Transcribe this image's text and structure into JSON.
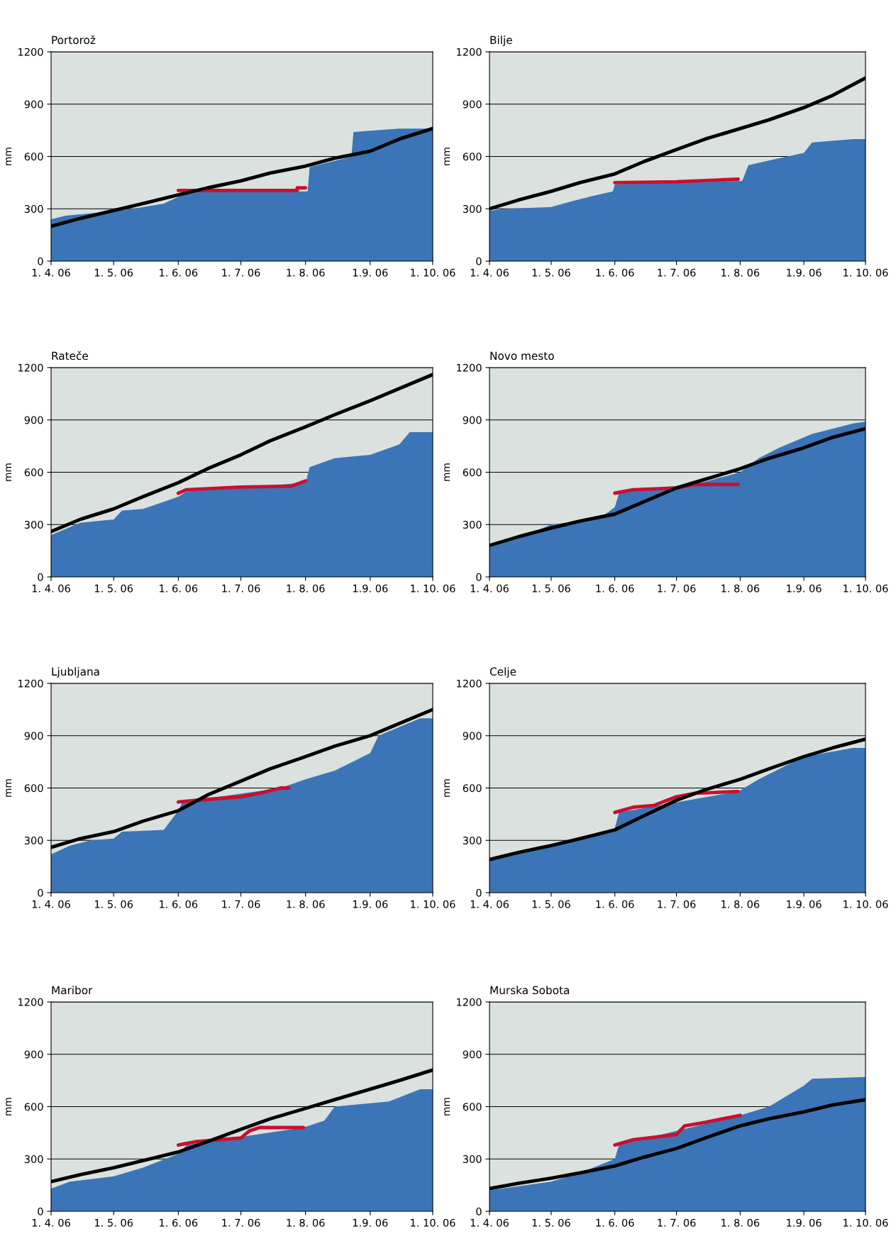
{
  "chart_data": [
    {
      "type": "line",
      "title": "Portorož",
      "ylabel": "mm",
      "ylim": [
        0,
        1200
      ],
      "yticks": [
        0,
        300,
        600,
        900,
        1200
      ],
      "xlim": [
        "2006-04-01",
        "2006-10-01"
      ],
      "xticks": [
        {
          "value": "2006-04-01",
          "label": "1. 4. 06"
        },
        {
          "value": "2006-05-01",
          "label": "1. 5. 06"
        },
        {
          "value": "2006-06-01",
          "label": "1. 6. 06"
        },
        {
          "value": "2006-07-01",
          "label": "1. 7. 06"
        },
        {
          "value": "2006-08-01",
          "label": "1. 8. 06"
        },
        {
          "value": "2006-09-01",
          "label": "1.9. 06"
        },
        {
          "value": "2006-10-01",
          "label": "1. 10. 06"
        }
      ],
      "grid": "y",
      "series": [
        {
          "type": "area",
          "color": "#3b75b8",
          "x": [
            "2006-04-01",
            "2006-04-08",
            "2006-04-25",
            "2006-05-10",
            "2006-05-25",
            "2006-06-05",
            "2006-06-10",
            "2006-08-02",
            "2006-08-03",
            "2006-08-10",
            "2006-08-20",
            "2006-08-23",
            "2006-08-24",
            "2006-09-15",
            "2006-10-01"
          ],
          "values": [
            240,
            260,
            280,
            300,
            330,
            390,
            400,
            400,
            540,
            560,
            590,
            600,
            740,
            760,
            760
          ]
        },
        {
          "color": "#c8102e",
          "x": [
            "2006-06-01",
            "2006-07-28",
            "2006-07-28",
            "2006-08-01"
          ],
          "values": [
            405,
            405,
            420,
            420
          ]
        },
        {
          "color": "#000000",
          "x": [
            "2006-04-01",
            "2006-04-15",
            "2006-05-01",
            "2006-05-15",
            "2006-06-01",
            "2006-06-15",
            "2006-07-01",
            "2006-07-15",
            "2006-08-01",
            "2006-08-15",
            "2006-09-01",
            "2006-09-15",
            "2006-10-01"
          ],
          "values": [
            200,
            245,
            290,
            330,
            380,
            420,
            460,
            505,
            545,
            590,
            630,
            700,
            760
          ]
        }
      ]
    },
    {
      "type": "line",
      "title": "Bilje",
      "ylabel": "mm",
      "ylim": [
        0,
        1200
      ],
      "yticks": [
        0,
        300,
        600,
        900,
        1200
      ],
      "xlim": [
        "2006-04-01",
        "2006-10-01"
      ],
      "xticks": [
        {
          "value": "2006-04-01",
          "label": "1. 4. 06"
        },
        {
          "value": "2006-05-01",
          "label": "1. 5. 06"
        },
        {
          "value": "2006-06-01",
          "label": "1. 6. 06"
        },
        {
          "value": "2006-07-01",
          "label": "1. 7. 06"
        },
        {
          "value": "2006-08-01",
          "label": "1. 8. 06"
        },
        {
          "value": "2006-09-01",
          "label": "1.9. 06"
        },
        {
          "value": "2006-10-01",
          "label": "1. 10. 06"
        }
      ],
      "grid": "y",
      "series": [
        {
          "type": "area",
          "color": "#3b75b8",
          "x": [
            "2006-04-01",
            "2006-04-10",
            "2006-05-01",
            "2006-05-10",
            "2006-05-20",
            "2006-05-31",
            "2006-06-01",
            "2006-08-02",
            "2006-08-05",
            "2006-08-20",
            "2006-09-01",
            "2006-09-05",
            "2006-09-25",
            "2006-10-01"
          ],
          "values": [
            290,
            300,
            310,
            340,
            370,
            400,
            440,
            460,
            550,
            590,
            620,
            680,
            700,
            700
          ]
        },
        {
          "color": "#c8102e",
          "x": [
            "2006-06-01",
            "2006-07-01",
            "2006-07-31"
          ],
          "values": [
            450,
            455,
            470
          ]
        },
        {
          "color": "#000000",
          "x": [
            "2006-04-01",
            "2006-04-15",
            "2006-05-01",
            "2006-05-15",
            "2006-06-01",
            "2006-06-15",
            "2006-07-01",
            "2006-07-15",
            "2006-08-01",
            "2006-08-15",
            "2006-09-01",
            "2006-09-15",
            "2006-10-01"
          ],
          "values": [
            300,
            350,
            400,
            450,
            500,
            570,
            640,
            700,
            760,
            810,
            880,
            950,
            1050
          ]
        }
      ]
    },
    {
      "type": "line",
      "title": "Rateče",
      "ylabel": "mm",
      "ylim": [
        0,
        1200
      ],
      "yticks": [
        0,
        300,
        600,
        900,
        1200
      ],
      "xlim": [
        "2006-04-01",
        "2006-10-01"
      ],
      "xticks": [
        {
          "value": "2006-04-01",
          "label": "1. 4. 06"
        },
        {
          "value": "2006-05-01",
          "label": "1. 5. 06"
        },
        {
          "value": "2006-06-01",
          "label": "1. 6. 06"
        },
        {
          "value": "2006-07-01",
          "label": "1. 7. 06"
        },
        {
          "value": "2006-08-01",
          "label": "1. 8. 06"
        },
        {
          "value": "2006-09-01",
          "label": "1.9. 06"
        },
        {
          "value": "2006-10-01",
          "label": "1. 10. 06"
        }
      ],
      "grid": "y",
      "series": [
        {
          "type": "area",
          "color": "#3b75b8",
          "x": [
            "2006-04-01",
            "2006-04-05",
            "2006-04-15",
            "2006-05-01",
            "2006-05-05",
            "2006-05-15",
            "2006-05-25",
            "2006-06-01",
            "2006-06-05",
            "2006-08-01",
            "2006-08-03",
            "2006-08-15",
            "2006-09-01",
            "2006-09-15",
            "2006-09-20",
            "2006-10-01"
          ],
          "values": [
            240,
            260,
            310,
            330,
            380,
            390,
            430,
            460,
            490,
            540,
            630,
            680,
            700,
            760,
            830,
            830
          ]
        },
        {
          "color": "#c8102e",
          "x": [
            "2006-06-01",
            "2006-06-05",
            "2006-07-01",
            "2006-07-25",
            "2006-08-01"
          ],
          "values": [
            480,
            500,
            515,
            520,
            550
          ]
        },
        {
          "color": "#000000",
          "x": [
            "2006-04-01",
            "2006-04-15",
            "2006-05-01",
            "2006-05-15",
            "2006-06-01",
            "2006-06-15",
            "2006-07-01",
            "2006-07-15",
            "2006-08-01",
            "2006-08-15",
            "2006-09-01",
            "2006-09-15",
            "2006-10-01"
          ],
          "values": [
            260,
            330,
            390,
            460,
            540,
            620,
            700,
            780,
            860,
            930,
            1010,
            1080,
            1160
          ]
        }
      ]
    },
    {
      "type": "line",
      "title": "Novo mesto",
      "ylabel": "mm",
      "ylim": [
        0,
        1200
      ],
      "yticks": [
        0,
        300,
        600,
        900,
        1200
      ],
      "xlim": [
        "2006-04-01",
        "2006-10-01"
      ],
      "xticks": [
        {
          "value": "2006-04-01",
          "label": "1. 4. 06"
        },
        {
          "value": "2006-05-01",
          "label": "1. 5. 06"
        },
        {
          "value": "2006-06-01",
          "label": "1. 6. 06"
        },
        {
          "value": "2006-07-01",
          "label": "1. 7. 06"
        },
        {
          "value": "2006-08-01",
          "label": "1. 8. 06"
        },
        {
          "value": "2006-09-01",
          "label": "1.9. 06"
        },
        {
          "value": "2006-10-01",
          "label": "1. 10. 06"
        }
      ],
      "grid": "y",
      "series": [
        {
          "type": "area",
          "color": "#3b75b8",
          "x": [
            "2006-04-01",
            "2006-04-15",
            "2006-05-01",
            "2006-05-15",
            "2006-05-25",
            "2006-06-01",
            "2006-06-03",
            "2006-06-10",
            "2006-07-10",
            "2006-08-01",
            "2006-08-10",
            "2006-08-20",
            "2006-09-05",
            "2006-09-25",
            "2006-10-01"
          ],
          "values": [
            170,
            220,
            300,
            320,
            340,
            400,
            480,
            500,
            530,
            600,
            680,
            740,
            820,
            880,
            890
          ]
        },
        {
          "color": "#c8102e",
          "x": [
            "2006-06-01",
            "2006-06-10",
            "2006-07-01",
            "2006-07-10",
            "2006-07-31"
          ],
          "values": [
            480,
            500,
            510,
            530,
            530
          ]
        },
        {
          "color": "#000000",
          "x": [
            "2006-04-01",
            "2006-04-15",
            "2006-05-01",
            "2006-05-15",
            "2006-06-01",
            "2006-06-15",
            "2006-07-01",
            "2006-07-15",
            "2006-08-01",
            "2006-08-15",
            "2006-09-01",
            "2006-09-15",
            "2006-10-01"
          ],
          "values": [
            180,
            230,
            280,
            320,
            360,
            430,
            510,
            560,
            620,
            680,
            740,
            800,
            850
          ]
        }
      ]
    },
    {
      "type": "line",
      "title": "Ljubljana",
      "ylabel": "mm",
      "ylim": [
        0,
        1200
      ],
      "yticks": [
        0,
        300,
        600,
        900,
        1200
      ],
      "xlim": [
        "2006-04-01",
        "2006-10-01"
      ],
      "xticks": [
        {
          "value": "2006-04-01",
          "label": "1. 4. 06"
        },
        {
          "value": "2006-05-01",
          "label": "1. 5. 06"
        },
        {
          "value": "2006-06-01",
          "label": "1. 6. 06"
        },
        {
          "value": "2006-07-01",
          "label": "1. 7. 06"
        },
        {
          "value": "2006-08-01",
          "label": "1. 8. 06"
        },
        {
          "value": "2006-09-01",
          "label": "1.9. 06"
        },
        {
          "value": "2006-10-01",
          "label": "1. 10. 06"
        }
      ],
      "grid": "y",
      "series": [
        {
          "type": "area",
          "color": "#3b75b8",
          "x": [
            "2006-04-01",
            "2006-04-10",
            "2006-04-20",
            "2006-05-01",
            "2006-05-05",
            "2006-05-25",
            "2006-06-01",
            "2006-06-03",
            "2006-07-20",
            "2006-08-01",
            "2006-08-15",
            "2006-09-01",
            "2006-09-05",
            "2006-09-25",
            "2006-10-01"
          ],
          "values": [
            220,
            270,
            300,
            310,
            350,
            360,
            470,
            520,
            600,
            650,
            700,
            800,
            900,
            1000,
            1000
          ]
        },
        {
          "color": "#c8102e",
          "x": [
            "2006-06-01",
            "2006-06-10",
            "2006-07-01",
            "2006-07-10",
            "2006-07-20",
            "2006-07-24"
          ],
          "values": [
            520,
            530,
            550,
            570,
            600,
            600
          ]
        },
        {
          "color": "#000000",
          "x": [
            "2006-04-01",
            "2006-04-15",
            "2006-05-01",
            "2006-05-15",
            "2006-06-01",
            "2006-06-15",
            "2006-07-01",
            "2006-07-15",
            "2006-08-01",
            "2006-08-15",
            "2006-09-01",
            "2006-09-15",
            "2006-10-01"
          ],
          "values": [
            260,
            310,
            350,
            410,
            470,
            560,
            640,
            710,
            780,
            840,
            900,
            970,
            1050
          ]
        }
      ]
    },
    {
      "type": "line",
      "title": "Celje",
      "ylabel": "mm",
      "ylim": [
        0,
        1200
      ],
      "yticks": [
        0,
        300,
        600,
        900,
        1200
      ],
      "xlim": [
        "2006-04-01",
        "2006-10-01"
      ],
      "xticks": [
        {
          "value": "2006-04-01",
          "label": "1. 4. 06"
        },
        {
          "value": "2006-05-01",
          "label": "1. 5. 06"
        },
        {
          "value": "2006-06-01",
          "label": "1. 6. 06"
        },
        {
          "value": "2006-07-01",
          "label": "1. 7. 06"
        },
        {
          "value": "2006-08-01",
          "label": "1. 8. 06"
        },
        {
          "value": "2006-09-01",
          "label": "1.9. 06"
        },
        {
          "value": "2006-10-01",
          "label": "1. 10. 06"
        }
      ],
      "grid": "y",
      "series": [
        {
          "type": "area",
          "color": "#3b75b8",
          "x": [
            "2006-04-01",
            "2006-05-01",
            "2006-06-01",
            "2006-06-03",
            "2006-07-31",
            "2006-08-10",
            "2006-09-01",
            "2006-09-25",
            "2006-10-01"
          ],
          "values": [
            180,
            270,
            370,
            460,
            580,
            650,
            780,
            830,
            830
          ]
        },
        {
          "color": "#c8102e",
          "x": [
            "2006-06-01",
            "2006-06-10",
            "2006-06-20",
            "2006-07-01",
            "2006-07-10",
            "2006-07-31"
          ],
          "values": [
            460,
            490,
            500,
            550,
            570,
            580
          ]
        },
        {
          "color": "#000000",
          "x": [
            "2006-04-01",
            "2006-04-15",
            "2006-05-01",
            "2006-05-15",
            "2006-06-01",
            "2006-06-15",
            "2006-07-01",
            "2006-07-15",
            "2006-08-01",
            "2006-08-15",
            "2006-09-01",
            "2006-09-15",
            "2006-10-01"
          ],
          "values": [
            190,
            230,
            270,
            310,
            360,
            440,
            530,
            590,
            650,
            710,
            780,
            830,
            880
          ]
        }
      ]
    },
    {
      "type": "line",
      "title": "Maribor",
      "ylabel": "mm",
      "ylim": [
        0,
        1200
      ],
      "yticks": [
        0,
        300,
        600,
        900,
        1200
      ],
      "xlim": [
        "2006-04-01",
        "2006-10-01"
      ],
      "xticks": [
        {
          "value": "2006-04-01",
          "label": "1. 4. 06"
        },
        {
          "value": "2006-05-01",
          "label": "1. 5. 06"
        },
        {
          "value": "2006-06-01",
          "label": "1. 6. 06"
        },
        {
          "value": "2006-07-01",
          "label": "1. 7. 06"
        },
        {
          "value": "2006-08-01",
          "label": "1. 8. 06"
        },
        {
          "value": "2006-09-01",
          "label": "1.9. 06"
        },
        {
          "value": "2006-10-01",
          "label": "1. 10. 06"
        }
      ],
      "grid": "y",
      "series": [
        {
          "type": "area",
          "color": "#3b75b8",
          "x": [
            "2006-04-01",
            "2006-04-10",
            "2006-05-01",
            "2006-05-15",
            "2006-06-01",
            "2006-06-05",
            "2006-07-31",
            "2006-08-10",
            "2006-08-15",
            "2006-09-10",
            "2006-09-25",
            "2006-10-01"
          ],
          "values": [
            130,
            170,
            200,
            250,
            330,
            380,
            480,
            520,
            600,
            630,
            700,
            700
          ]
        },
        {
          "color": "#c8102e",
          "x": [
            "2006-06-01",
            "2006-06-10",
            "2006-07-01",
            "2006-07-05",
            "2006-07-10",
            "2006-07-31"
          ],
          "values": [
            380,
            400,
            420,
            460,
            480,
            480
          ]
        },
        {
          "color": "#000000",
          "x": [
            "2006-04-01",
            "2006-04-15",
            "2006-05-01",
            "2006-05-15",
            "2006-06-01",
            "2006-06-15",
            "2006-07-01",
            "2006-07-15",
            "2006-08-01",
            "2006-08-15",
            "2006-09-01",
            "2006-09-15",
            "2006-10-01"
          ],
          "values": [
            170,
            210,
            250,
            290,
            340,
            400,
            470,
            530,
            590,
            640,
            700,
            750,
            810
          ]
        }
      ]
    },
    {
      "type": "line",
      "title": "Murska Sobota",
      "ylabel": "mm",
      "ylim": [
        0,
        1200
      ],
      "yticks": [
        0,
        300,
        600,
        900,
        1200
      ],
      "xlim": [
        "2006-04-01",
        "2006-10-01"
      ],
      "xticks": [
        {
          "value": "2006-04-01",
          "label": "1. 4. 06"
        },
        {
          "value": "2006-05-01",
          "label": "1. 5. 06"
        },
        {
          "value": "2006-06-01",
          "label": "1. 6. 06"
        },
        {
          "value": "2006-07-01",
          "label": "1. 7. 06"
        },
        {
          "value": "2006-08-01",
          "label": "1. 8. 06"
        },
        {
          "value": "2006-09-01",
          "label": "1.9. 06"
        },
        {
          "value": "2006-10-01",
          "label": "1. 10. 06"
        }
      ],
      "grid": "y",
      "series": [
        {
          "type": "area",
          "color": "#3b75b8",
          "x": [
            "2006-04-01",
            "2006-05-01",
            "2006-05-15",
            "2006-06-01",
            "2006-06-03",
            "2006-08-01",
            "2006-08-15",
            "2006-09-01",
            "2006-09-05",
            "2006-10-01"
          ],
          "values": [
            120,
            170,
            220,
            300,
            380,
            550,
            600,
            720,
            760,
            770
          ]
        },
        {
          "color": "#c8102e",
          "x": [
            "2006-06-01",
            "2006-06-10",
            "2006-07-01",
            "2006-07-05",
            "2006-07-15",
            "2006-08-01"
          ],
          "values": [
            380,
            410,
            440,
            490,
            510,
            550
          ]
        },
        {
          "color": "#000000",
          "x": [
            "2006-04-01",
            "2006-04-15",
            "2006-05-01",
            "2006-05-15",
            "2006-06-01",
            "2006-06-15",
            "2006-07-01",
            "2006-07-15",
            "2006-08-01",
            "2006-08-15",
            "2006-09-01",
            "2006-09-15",
            "2006-10-01"
          ],
          "values": [
            130,
            160,
            190,
            220,
            260,
            310,
            360,
            420,
            490,
            530,
            570,
            610,
            640
          ]
        }
      ]
    }
  ]
}
